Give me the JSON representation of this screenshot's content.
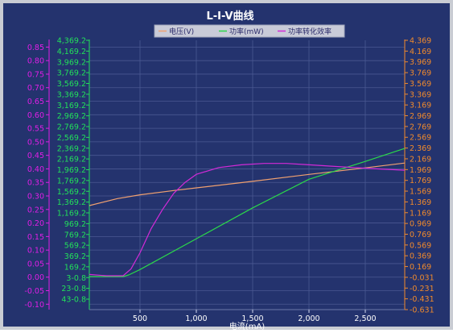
{
  "chart_data": {
    "type": "line",
    "title": "L-I-V曲线",
    "xlabel": "电流(mA)",
    "xlim": [
      50,
      2850
    ],
    "x_ticks": [
      500,
      1000,
      1500,
      2000,
      2500
    ],
    "x_tick_labels": [
      "500",
      "1,000",
      "1,500",
      "2,000",
      "2,500"
    ],
    "grid": true,
    "legend_position": "top",
    "axes": {
      "left_outer": {
        "color": "#e01ee6",
        "ylim": [
          -0.12,
          0.875
        ],
        "ticks": [
          0.85,
          0.8,
          0.75,
          0.7,
          0.65,
          0.6,
          0.55,
          0.5,
          0.45,
          0.4,
          0.35,
          0.3,
          0.25,
          0.2,
          0.15,
          0.1,
          0.05,
          0.0,
          -0.05,
          -0.1
        ],
        "tick_labels": [
          "0.85",
          "0.80",
          "0.75",
          "0.70",
          "0.65",
          "0.60",
          "0.55",
          "0.50",
          "0.45",
          "0.40",
          "0.35",
          "0.30",
          "0.25",
          "0.20",
          "0.15",
          "0.10",
          "0.05",
          "0.00",
          "-0.05",
          "-0.10"
        ]
      },
      "left_inner": {
        "color": "#22e05a",
        "tick_labels": [
          "4,369.2",
          "4,169.2",
          "3,969.2",
          "3,769.2",
          "3,569.2",
          "3,369.2",
          "3,169.2",
          "2,969.2",
          "2,769.2",
          "2,569.2",
          "2,369.2",
          "2,169.2",
          "1,969.2",
          "1,769.2",
          "1,569.2",
          "1,369.2",
          "1,169.2",
          "969.2",
          "769.2",
          "569.2",
          "369.2",
          "169.2",
          "3-0.8",
          "23-0.8",
          "43-0.8"
        ]
      },
      "right": {
        "color": "#f08a2c",
        "tick_labels": [
          "4.369",
          "4.169",
          "3.969",
          "3.769",
          "3.569",
          "3.369",
          "3.169",
          "2.969",
          "2.769",
          "2.569",
          "2.369",
          "2.169",
          "1.969",
          "1.769",
          "1.569",
          "1.369",
          "1.169",
          "0.969",
          "0.769",
          "0.569",
          "0.369",
          "0.169",
          "-0.031",
          "-0.231",
          "-0.431",
          "-0.631"
        ]
      }
    },
    "series": [
      {
        "name": "电压(V)",
        "color": "#f0a070",
        "axis": "right",
        "x": [
          50,
          300,
          500,
          800,
          1000,
          1500,
          2000,
          2500,
          2850
        ],
        "y": [
          1.3,
          1.43,
          1.5,
          1.58,
          1.63,
          1.75,
          1.88,
          2.0,
          2.09
        ]
      },
      {
        "name": "功率(mW)",
        "color": "#2bd84a",
        "axis": "left_inner",
        "x": [
          50,
          350,
          400,
          500,
          1000,
          1500,
          2000,
          2500,
          2850
        ],
        "y": [
          0,
          0,
          30,
          130,
          700,
          1270,
          1800,
          2130,
          2370
        ]
      },
      {
        "name": "功率转化效率",
        "color": "#d32ad8",
        "axis": "left_outer",
        "x": [
          50,
          200,
          350,
          420,
          500,
          600,
          700,
          800,
          900,
          1000,
          1200,
          1400,
          1600,
          1800,
          2000,
          2200,
          2400,
          2600,
          2850
        ],
        "y": [
          0.01,
          0.005,
          0.005,
          0.03,
          0.09,
          0.18,
          0.25,
          0.31,
          0.35,
          0.38,
          0.405,
          0.415,
          0.42,
          0.42,
          0.415,
          0.41,
          0.405,
          0.4,
          0.395
        ]
      }
    ]
  }
}
